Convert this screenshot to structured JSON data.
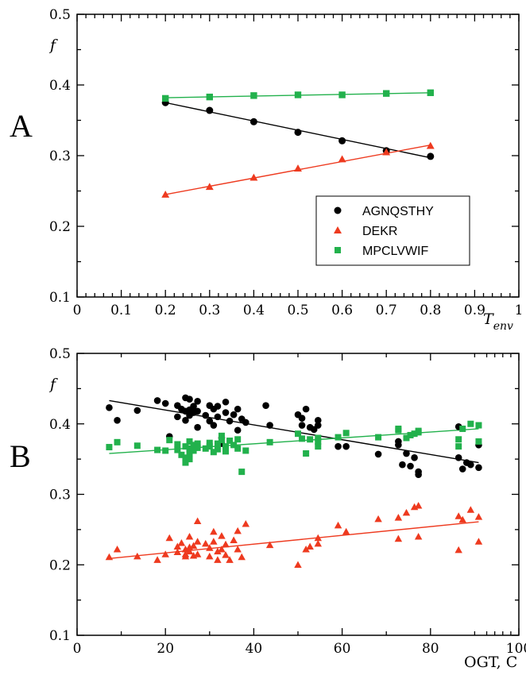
{
  "chart_data": [
    {
      "panel_label": "A",
      "type": "scatter",
      "xlabel": "T",
      "xlabel_sub": "env",
      "ylabel": "f",
      "xlim": [
        0,
        1
      ],
      "ylim": [
        0.1,
        0.5
      ],
      "xticks": [
        "0",
        "0.1",
        "0.2",
        "0.3",
        "0.4",
        "0.5",
        "0.6",
        "0.7",
        "0.8",
        "0.9",
        "1"
      ],
      "yticks": [
        "0.1",
        "0.2",
        "0.3",
        "0.4",
        "0.5"
      ],
      "grid": false,
      "legend_position": "lower-right",
      "series": [
        {
          "name": "AGNQSTHY",
          "color": "#000000",
          "marker": "circle",
          "points": [
            [
              0.2,
              0.375
            ],
            [
              0.3,
              0.364
            ],
            [
              0.4,
              0.348
            ],
            [
              0.5,
              0.333
            ],
            [
              0.6,
              0.321
            ],
            [
              0.7,
              0.307
            ],
            [
              0.8,
              0.299
            ]
          ],
          "fit": [
            [
              0.2,
              0.375
            ],
            [
              0.8,
              0.297
            ]
          ]
        },
        {
          "name": "DEKR",
          "color": "#ee3a1f",
          "marker": "triangle",
          "points": [
            [
              0.2,
              0.245
            ],
            [
              0.3,
              0.256
            ],
            [
              0.4,
              0.269
            ],
            [
              0.5,
              0.282
            ],
            [
              0.6,
              0.295
            ],
            [
              0.7,
              0.305
            ],
            [
              0.8,
              0.314
            ]
          ],
          "fit": [
            [
              0.2,
              0.245
            ],
            [
              0.8,
              0.315
            ]
          ]
        },
        {
          "name": "MPCLVWIF",
          "color": "#22b14c",
          "marker": "square",
          "points": [
            [
              0.2,
              0.381
            ],
            [
              0.3,
              0.383
            ],
            [
              0.4,
              0.385
            ],
            [
              0.5,
              0.386
            ],
            [
              0.6,
              0.386
            ],
            [
              0.7,
              0.388
            ],
            [
              0.8,
              0.389
            ]
          ],
          "fit": [
            [
              0.2,
              0.382
            ],
            [
              0.8,
              0.389
            ]
          ]
        }
      ]
    },
    {
      "panel_label": "B",
      "type": "scatter",
      "xlabel": "OGT, C",
      "ylabel": "f",
      "xlim": [
        0,
        110
      ],
      "ylim": [
        0.1,
        0.5
      ],
      "xticks": [
        "0",
        "20",
        "40",
        "60",
        "80",
        "100"
      ],
      "yticks": [
        "0.1",
        "0.2",
        "0.3",
        "0.4",
        "0.5"
      ],
      "grid": false,
      "series": [
        {
          "name": "AGNQSTHY",
          "color": "#000000",
          "marker": "circle",
          "points": [
            [
              8,
              0.423
            ],
            [
              10,
              0.405
            ],
            [
              15,
              0.419
            ],
            [
              20,
              0.433
            ],
            [
              22,
              0.429
            ],
            [
              23,
              0.382
            ],
            [
              25,
              0.41
            ],
            [
              25,
              0.426
            ],
            [
              26,
              0.421
            ],
            [
              27,
              0.437
            ],
            [
              27,
              0.418
            ],
            [
              27,
              0.405
            ],
            [
              28,
              0.435
            ],
            [
              28,
              0.42
            ],
            [
              28,
              0.412
            ],
            [
              29,
              0.425
            ],
            [
              29,
              0.416
            ],
            [
              30,
              0.432
            ],
            [
              30,
              0.418
            ],
            [
              30,
              0.395
            ],
            [
              32,
              0.412
            ],
            [
              33,
              0.426
            ],
            [
              33,
              0.404
            ],
            [
              34,
              0.421
            ],
            [
              34,
              0.398
            ],
            [
              35,
              0.425
            ],
            [
              35,
              0.41
            ],
            [
              36,
              0.38
            ],
            [
              36,
              0.372
            ],
            [
              37,
              0.431
            ],
            [
              37,
              0.416
            ],
            [
              38,
              0.404
            ],
            [
              39,
              0.413
            ],
            [
              40,
              0.421
            ],
            [
              40,
              0.391
            ],
            [
              41,
              0.407
            ],
            [
              42,
              0.402
            ],
            [
              47,
              0.426
            ],
            [
              48,
              0.398
            ],
            [
              55,
              0.413
            ],
            [
              56,
              0.408
            ],
            [
              56,
              0.398
            ],
            [
              57,
              0.421
            ],
            [
              58,
              0.395
            ],
            [
              59,
              0.392
            ],
            [
              60,
              0.405
            ],
            [
              60,
              0.398
            ],
            [
              65,
              0.368
            ],
            [
              67,
              0.368
            ],
            [
              75,
              0.357
            ],
            [
              80,
              0.375
            ],
            [
              80,
              0.37
            ],
            [
              81,
              0.342
            ],
            [
              82,
              0.358
            ],
            [
              83,
              0.34
            ],
            [
              84,
              0.352
            ],
            [
              85,
              0.332
            ],
            [
              85,
              0.328
            ],
            [
              95,
              0.396
            ],
            [
              95,
              0.352
            ],
            [
              96,
              0.336
            ],
            [
              97,
              0.345
            ],
            [
              98,
              0.342
            ],
            [
              100,
              0.338
            ],
            [
              100,
              0.37
            ]
          ],
          "fit": [
            [
              8,
              0.433
            ],
            [
              100,
              0.345
            ]
          ]
        },
        {
          "name": "DEKR",
          "color": "#ee3a1f",
          "marker": "triangle",
          "points": [
            [
              8,
              0.211
            ],
            [
              10,
              0.222
            ],
            [
              15,
              0.212
            ],
            [
              20,
              0.207
            ],
            [
              22,
              0.215
            ],
            [
              23,
              0.238
            ],
            [
              25,
              0.226
            ],
            [
              25,
              0.218
            ],
            [
              26,
              0.231
            ],
            [
              27,
              0.222
            ],
            [
              27,
              0.215
            ],
            [
              27,
              0.212
            ],
            [
              28,
              0.24
            ],
            [
              28,
              0.225
            ],
            [
              28,
              0.219
            ],
            [
              29,
              0.213
            ],
            [
              29,
              0.227
            ],
            [
              30,
              0.262
            ],
            [
              30,
              0.233
            ],
            [
              30,
              0.215
            ],
            [
              32,
              0.23
            ],
            [
              33,
              0.212
            ],
            [
              33,
              0.224
            ],
            [
              34,
              0.247
            ],
            [
              34,
              0.233
            ],
            [
              35,
              0.219
            ],
            [
              35,
              0.207
            ],
            [
              36,
              0.241
            ],
            [
              36,
              0.222
            ],
            [
              37,
              0.214
            ],
            [
              37,
              0.229
            ],
            [
              38,
              0.207
            ],
            [
              39,
              0.235
            ],
            [
              40,
              0.248
            ],
            [
              40,
              0.222
            ],
            [
              41,
              0.211
            ],
            [
              42,
              0.258
            ],
            [
              48,
              0.228
            ],
            [
              55,
              0.2
            ],
            [
              57,
              0.222
            ],
            [
              58,
              0.226
            ],
            [
              60,
              0.238
            ],
            [
              60,
              0.23
            ],
            [
              65,
              0.256
            ],
            [
              67,
              0.247
            ],
            [
              75,
              0.265
            ],
            [
              80,
              0.237
            ],
            [
              80,
              0.267
            ],
            [
              82,
              0.274
            ],
            [
              84,
              0.282
            ],
            [
              85,
              0.284
            ],
            [
              85,
              0.24
            ],
            [
              95,
              0.269
            ],
            [
              95,
              0.221
            ],
            [
              96,
              0.264
            ],
            [
              98,
              0.278
            ],
            [
              100,
              0.268
            ],
            [
              100,
              0.233
            ]
          ],
          "fit": [
            [
              8,
              0.209
            ],
            [
              100,
              0.261
            ]
          ]
        },
        {
          "name": "MPCLVWIF",
          "color": "#22b14c",
          "marker": "square",
          "points": [
            [
              8,
              0.367
            ],
            [
              10,
              0.374
            ],
            [
              15,
              0.369
            ],
            [
              20,
              0.363
            ],
            [
              22,
              0.362
            ],
            [
              23,
              0.377
            ],
            [
              25,
              0.371
            ],
            [
              25,
              0.363
            ],
            [
              26,
              0.356
            ],
            [
              27,
              0.352
            ],
            [
              27,
              0.345
            ],
            [
              27,
              0.368
            ],
            [
              28,
              0.375
            ],
            [
              28,
              0.365
            ],
            [
              28,
              0.358
            ],
            [
              28,
              0.35
            ],
            [
              29,
              0.37
            ],
            [
              29,
              0.362
            ],
            [
              30,
              0.372
            ],
            [
              30,
              0.366
            ],
            [
              32,
              0.365
            ],
            [
              33,
              0.373
            ],
            [
              33,
              0.368
            ],
            [
              34,
              0.36
            ],
            [
              35,
              0.372
            ],
            [
              35,
              0.364
            ],
            [
              36,
              0.383
            ],
            [
              36,
              0.377
            ],
            [
              37,
              0.368
            ],
            [
              37,
              0.361
            ],
            [
              38,
              0.376
            ],
            [
              39,
              0.37
            ],
            [
              40,
              0.378
            ],
            [
              40,
              0.365
            ],
            [
              41,
              0.332
            ],
            [
              42,
              0.362
            ],
            [
              48,
              0.374
            ],
            [
              55,
              0.386
            ],
            [
              56,
              0.379
            ],
            [
              57,
              0.358
            ],
            [
              58,
              0.378
            ],
            [
              60,
              0.38
            ],
            [
              60,
              0.375
            ],
            [
              60,
              0.368
            ],
            [
              65,
              0.381
            ],
            [
              67,
              0.387
            ],
            [
              75,
              0.381
            ],
            [
              80,
              0.391
            ],
            [
              80,
              0.393
            ],
            [
              82,
              0.38
            ],
            [
              83,
              0.384
            ],
            [
              84,
              0.386
            ],
            [
              85,
              0.39
            ],
            [
              85,
              0.388
            ],
            [
              95,
              0.368
            ],
            [
              95,
              0.378
            ],
            [
              96,
              0.393
            ],
            [
              98,
              0.4
            ],
            [
              100,
              0.398
            ],
            [
              100,
              0.375
            ]
          ],
          "fit": [
            [
              8,
              0.358
            ],
            [
              100,
              0.393
            ]
          ]
        }
      ]
    }
  ]
}
